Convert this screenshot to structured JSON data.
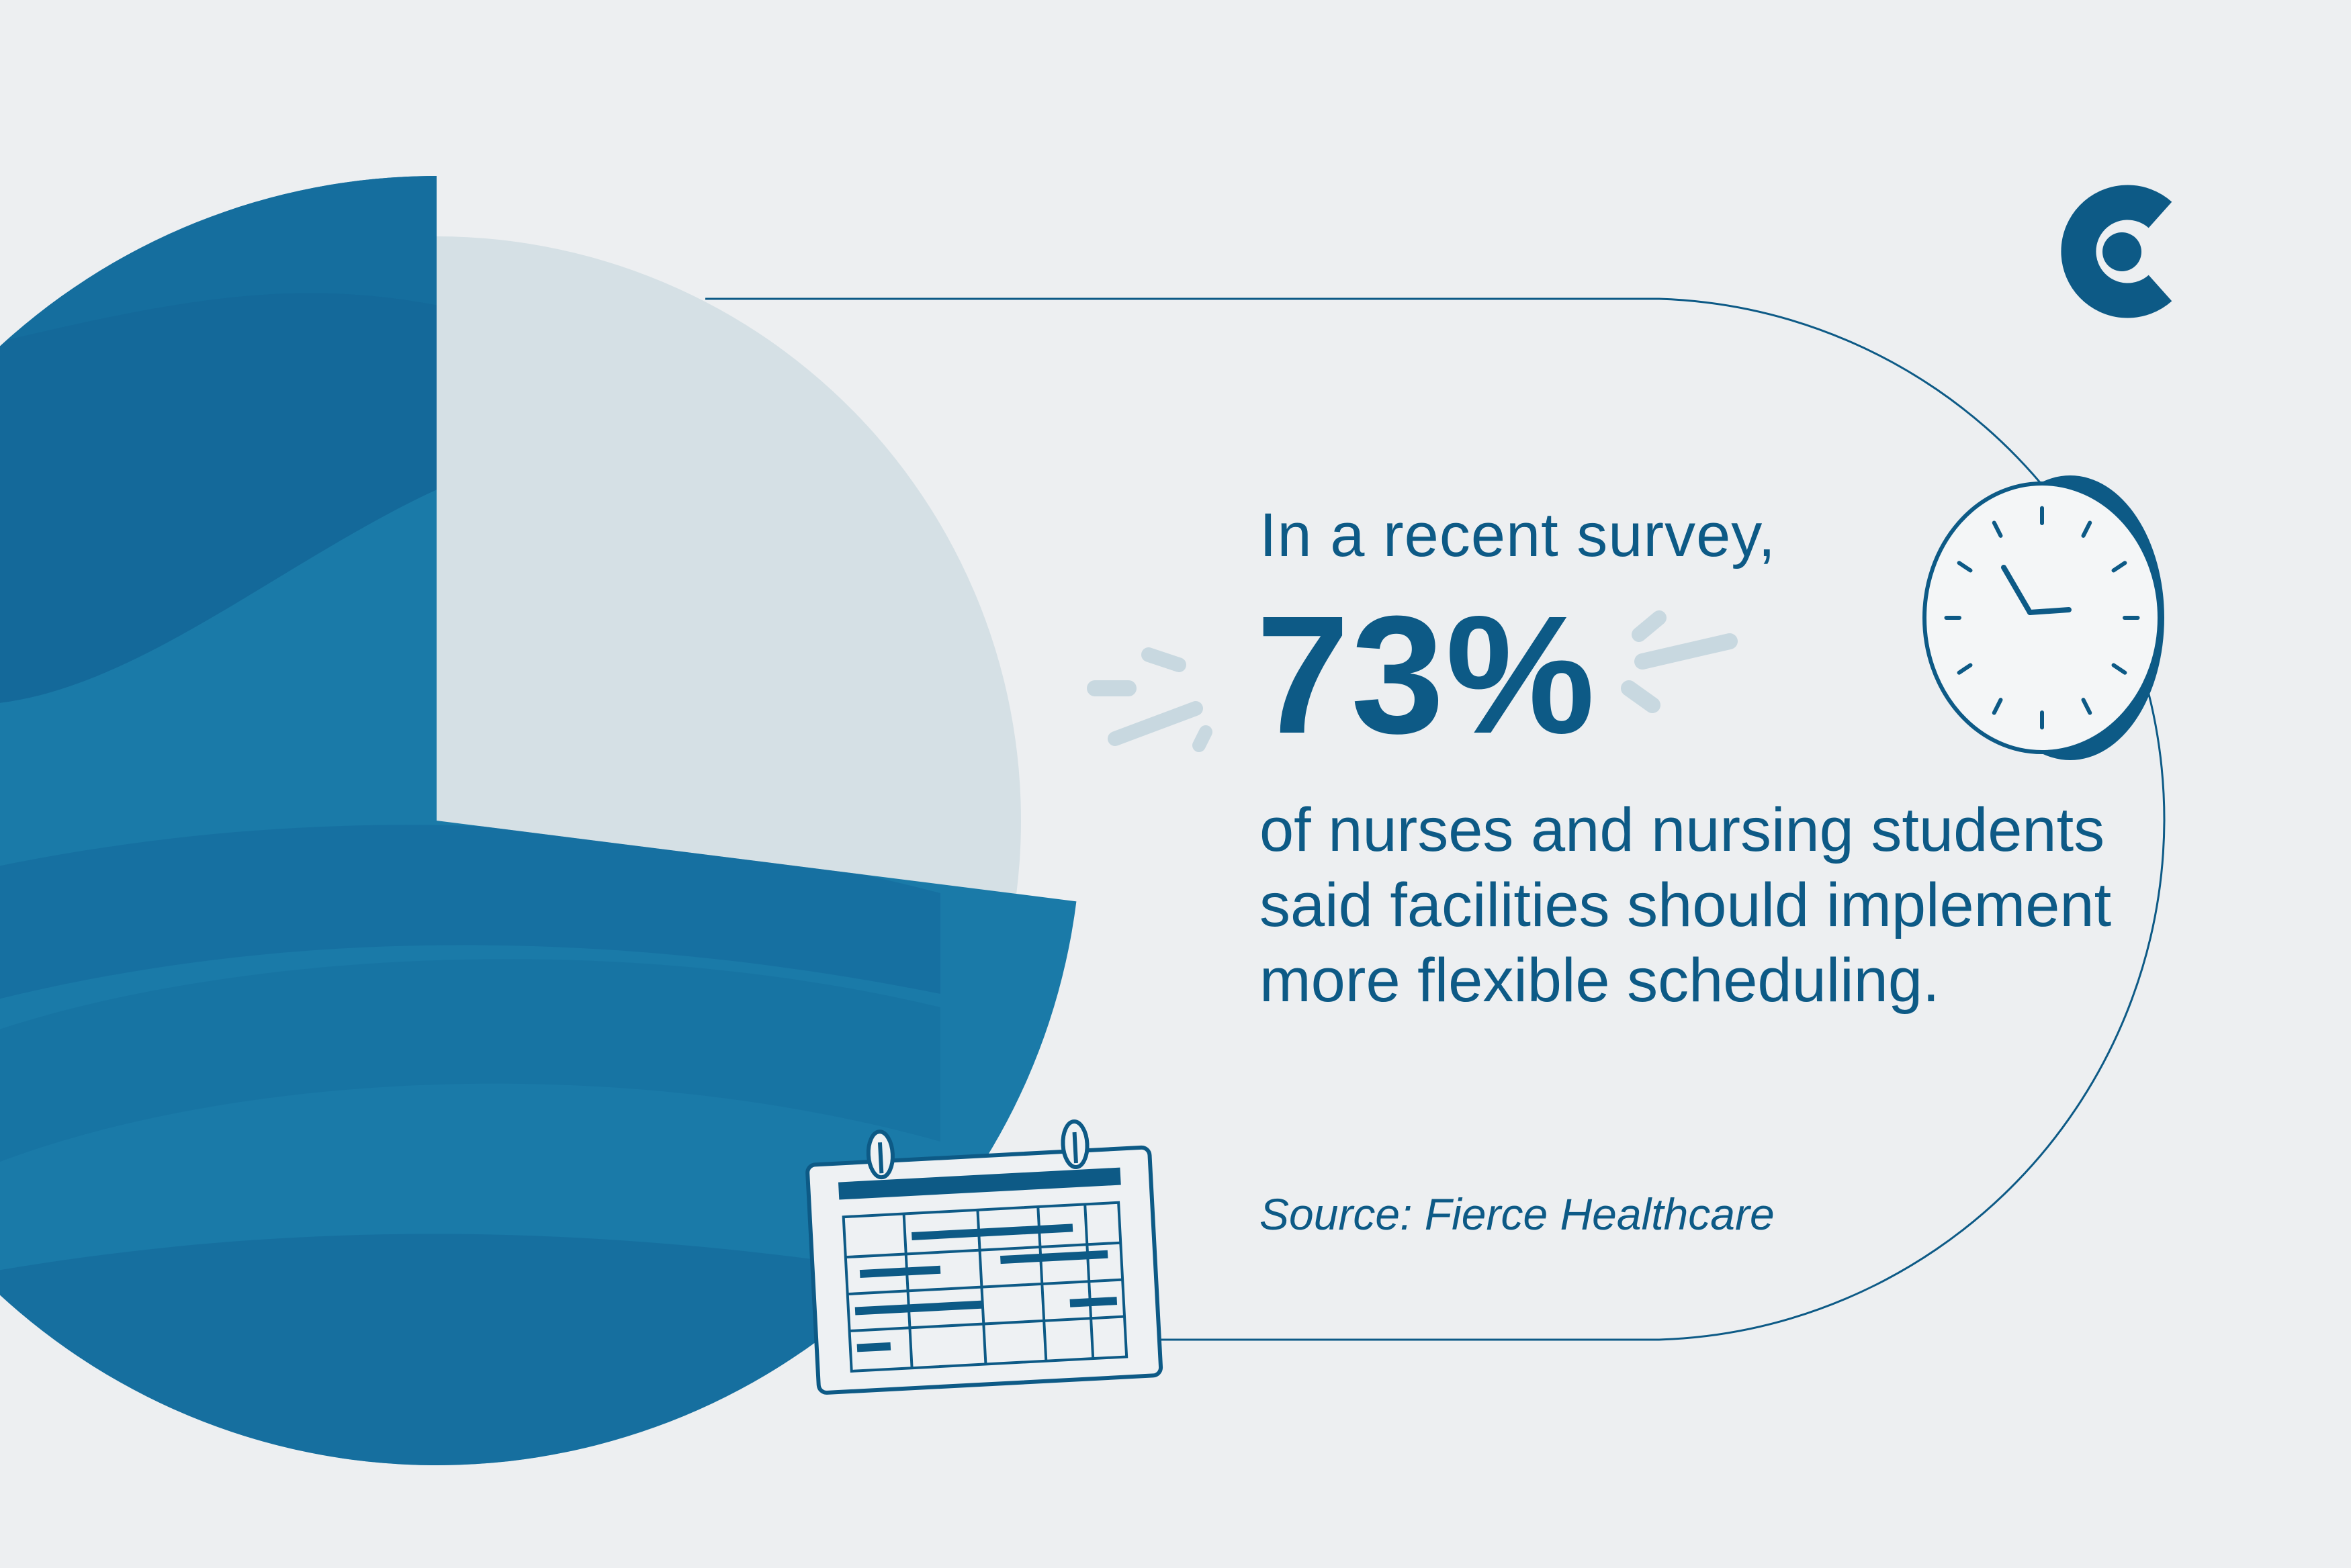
{
  "headline": {
    "intro": "In a recent survey,",
    "stat": "73%",
    "detail": "of nurses and nursing students said facilities should implement more flexible scheduling."
  },
  "source": "Source: Fierce Healthcare",
  "pie": {
    "highlight_fraction": 0.73
  },
  "colors": {
    "background": "#edeff1",
    "primary": "#0d5a86",
    "pie_main": "#1a7aa8",
    "pie_dark": "#14689a",
    "pie_light": "#d5e0e5",
    "accent_light": "#c8d8e0"
  },
  "icons": [
    "brand-logo-icon",
    "clock-icon",
    "calendar-icon",
    "sparkle-icon"
  ]
}
